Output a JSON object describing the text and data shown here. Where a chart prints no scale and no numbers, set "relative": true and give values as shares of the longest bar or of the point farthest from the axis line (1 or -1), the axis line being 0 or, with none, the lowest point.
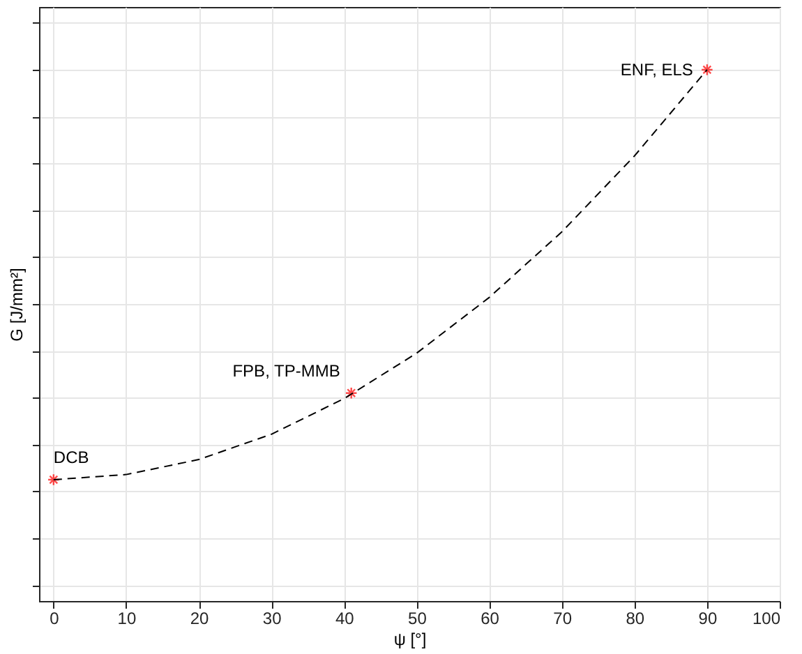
{
  "chart_data": {
    "type": "scatter",
    "relative": true,
    "xlabel": "ψ [°]",
    "ylabel": "G [J/mm²]",
    "xlim": [
      -2,
      100
    ],
    "xticks": [
      0,
      10,
      20,
      30,
      40,
      50,
      60,
      70,
      80,
      90,
      100
    ],
    "grid": true,
    "marker": "cross",
    "series": [
      {
        "color": "#ff0000",
        "x": [
          0,
          41,
          90
        ],
        "values": [
          0.125,
          0.31,
          1
        ]
      },
      {
        "type": "line",
        "color": "#000000",
        "line_style": "dashed",
        "marker": "none",
        "x": [
          0,
          10,
          20,
          30,
          40,
          50,
          60,
          70,
          80,
          90
        ],
        "values": [
          0.125,
          0.136,
          0.168,
          0.222,
          0.298,
          0.395,
          0.514,
          0.654,
          0.816,
          1
        ]
      }
    ],
    "annotations": [
      {
        "text": "DCB",
        "x": 0,
        "y": 0.125
      },
      {
        "text": "FPB, TP-MMB",
        "x": 41,
        "y": 0.31
      },
      {
        "text": "ENF, ELS",
        "x": 90,
        "y": 1
      }
    ]
  }
}
